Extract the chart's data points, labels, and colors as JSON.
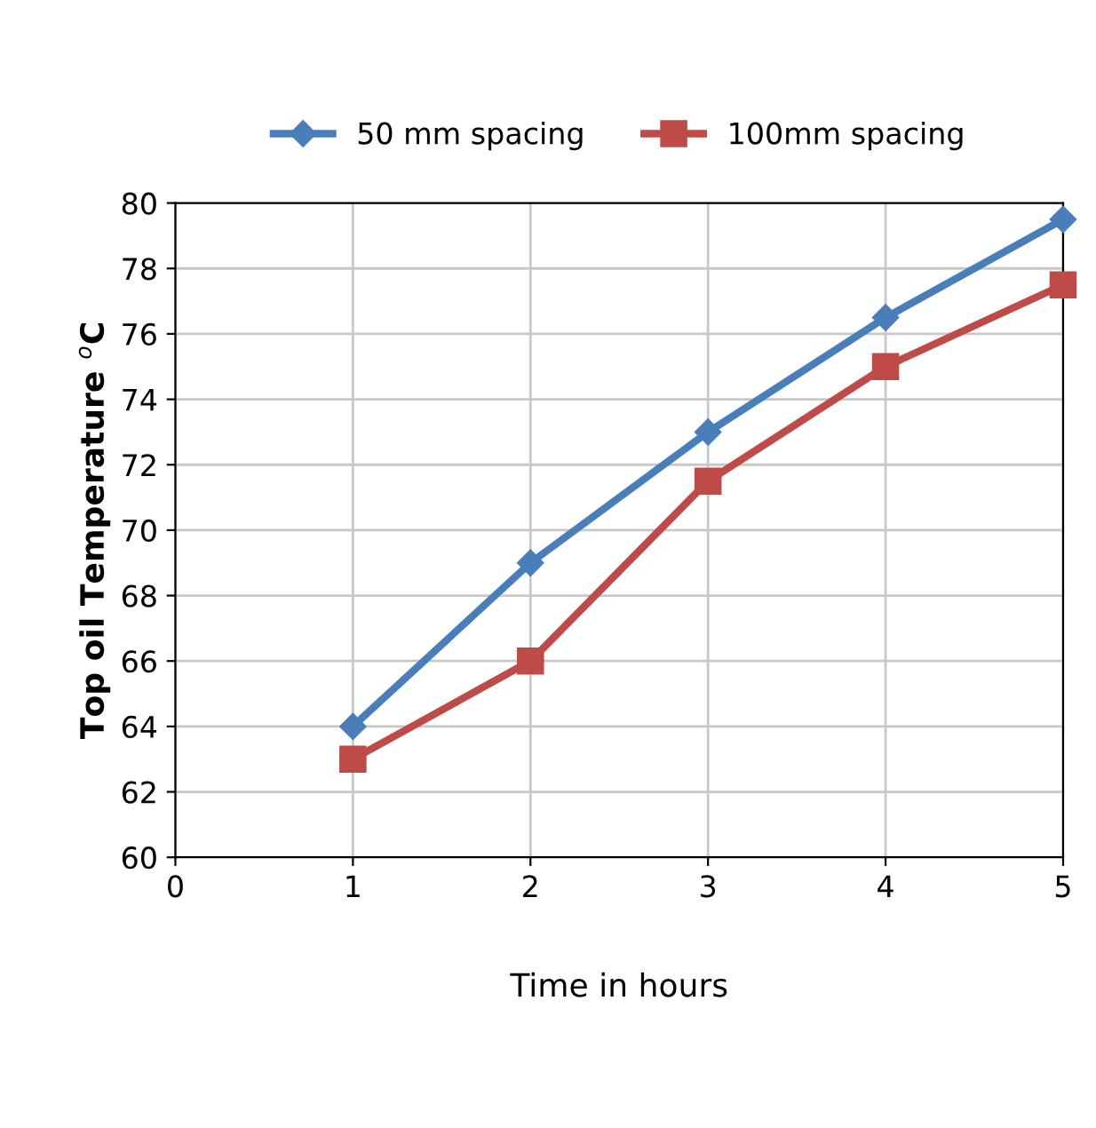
{
  "chart_data": {
    "type": "line",
    "xlabel": "Time in hours",
    "ylabel": "Top oil Temperature $^{o}$C",
    "x": [
      1,
      2,
      3,
      4,
      5
    ],
    "series": [
      {
        "name": "50 mm spacing",
        "color": "#4a7ebb",
        "marker": "diamond",
        "values": [
          64,
          69,
          73,
          76.5,
          79.5
        ]
      },
      {
        "name": "100mm spacing",
        "color": "#be4b48",
        "marker": "square",
        "values": [
          63,
          66,
          71.5,
          75,
          77.5
        ]
      }
    ],
    "xlim": [
      0,
      5
    ],
    "xticks": [
      0,
      1,
      2,
      3,
      4,
      5
    ],
    "ylim": [
      60,
      80
    ],
    "yticks": [
      60,
      62,
      64,
      66,
      68,
      70,
      72,
      74,
      76,
      78,
      80
    ],
    "grid": true,
    "legend": "top",
    "line_style": "solid"
  }
}
